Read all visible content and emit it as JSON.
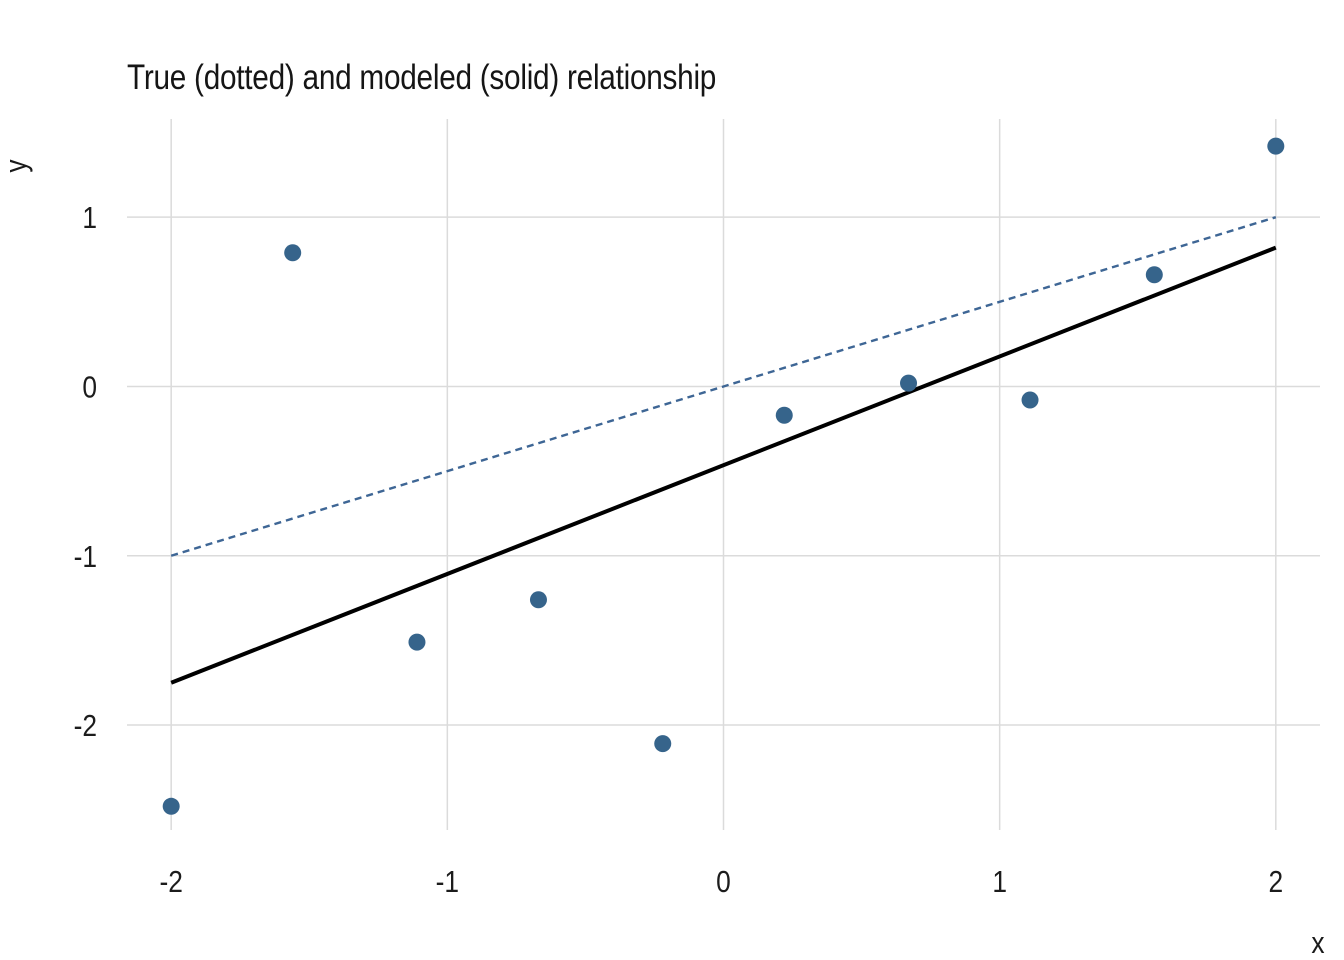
{
  "chart_data": {
    "type": "scatter",
    "title": "True (dotted) and modeled (solid) relationship",
    "xlabel": "x",
    "ylabel": "y",
    "xlim": [
      -2.16,
      2.16
    ],
    "ylim": [
      -2.62,
      1.58
    ],
    "x_ticks": [
      -2,
      -1,
      0,
      1,
      2
    ],
    "y_ticks": [
      1,
      0,
      -1,
      -2
    ],
    "grid": true,
    "legend_position": "none",
    "points": [
      {
        "x": -2.0,
        "y": -2.48
      },
      {
        "x": -1.56,
        "y": 0.79
      },
      {
        "x": -1.11,
        "y": -1.51
      },
      {
        "x": -0.67,
        "y": -1.26
      },
      {
        "x": -0.22,
        "y": -2.11
      },
      {
        "x": 0.22,
        "y": -0.17
      },
      {
        "x": 0.67,
        "y": 0.02
      },
      {
        "x": 1.11,
        "y": -0.08
      },
      {
        "x": 1.56,
        "y": 0.66
      },
      {
        "x": 2.0,
        "y": 1.42
      }
    ],
    "lines": [
      {
        "name": "true-relationship",
        "style": "dotted",
        "equation": "y = 0.5x",
        "x": [
          -2,
          2
        ],
        "y": [
          -1.0,
          1.0
        ],
        "color": "#3e6695",
        "width": 2.4
      },
      {
        "name": "modeled-relationship",
        "style": "solid",
        "equation": "y = 0.64x - 0.47",
        "x": [
          -2,
          2
        ],
        "y": [
          -1.75,
          0.82
        ],
        "color": "#000000",
        "width": 4
      }
    ],
    "point_color": "#36648b",
    "point_radius": 8.5,
    "grid_color": "#dbdbdb",
    "text_color": "#1c1c1c",
    "background": "#ffffff"
  }
}
